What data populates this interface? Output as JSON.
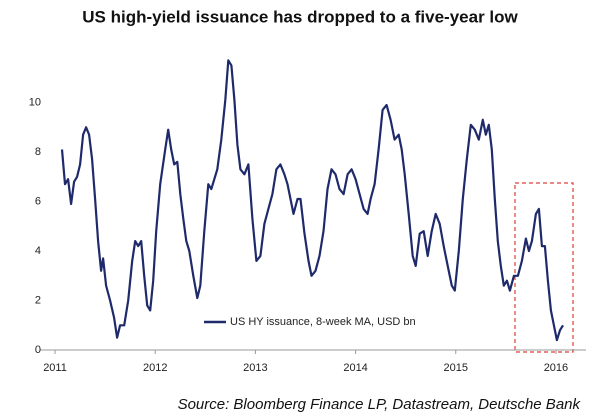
{
  "chart_data": {
    "type": "line",
    "title": "US high-yield issuance has dropped to a five-year low",
    "source": "Source: Bloomberg Finance LP, Datastream, Deutsche Bank",
    "xlim": [
      2010.85,
      2016.3
    ],
    "xticks": [
      2011,
      2012,
      2013,
      2014,
      2015,
      2016
    ],
    "ylim": [
      0,
      12
    ],
    "yticks": [
      0,
      2,
      4,
      6,
      8,
      10
    ],
    "legend": "bottom",
    "series": [
      {
        "name": "US HY issuance, 8-week MA, USD bn",
        "color": "#1f2a6b",
        "x": [
          2011.07,
          2011.1,
          2011.13,
          2011.16,
          2011.19,
          2011.22,
          2011.25,
          2011.28,
          2011.31,
          2011.34,
          2011.37,
          2011.4,
          2011.43,
          2011.46,
          2011.48,
          2011.51,
          2011.55,
          2011.59,
          2011.62,
          2011.65,
          2011.69,
          2011.73,
          2011.77,
          2011.8,
          2011.83,
          2011.86,
          2011.89,
          2011.92,
          2011.95,
          2011.98,
          2012.01,
          2012.05,
          2012.1,
          2012.13,
          2012.16,
          2012.19,
          2012.22,
          2012.25,
          2012.28,
          2012.31,
          2012.34,
          2012.38,
          2012.42,
          2012.45,
          2012.49,
          2012.53,
          2012.56,
          2012.59,
          2012.62,
          2012.66,
          2012.7,
          2012.73,
          2012.76,
          2012.79,
          2012.82,
          2012.85,
          2012.89,
          2012.93,
          2012.97,
          2013.01,
          2013.05,
          2013.09,
          2013.13,
          2013.17,
          2013.21,
          2013.25,
          2013.29,
          2013.32,
          2013.35,
          2013.38,
          2013.42,
          2013.45,
          2013.49,
          2013.53,
          2013.56,
          2013.6,
          2013.64,
          2013.68,
          2013.72,
          2013.76,
          2013.8,
          2013.84,
          2013.88,
          2013.92,
          2013.96,
          2014.0,
          2014.04,
          2014.08,
          2014.12,
          2014.15,
          2014.19,
          2014.23,
          2014.27,
          2014.31,
          2014.35,
          2014.39,
          2014.43,
          2014.46,
          2014.49,
          2014.53,
          2014.57,
          2014.6,
          2014.64,
          2014.68,
          2014.72,
          2014.76,
          2014.8,
          2014.84,
          2014.88,
          2014.92,
          2014.96,
          2014.99,
          2015.03,
          2015.07,
          2015.11,
          2015.15,
          2015.19,
          2015.23,
          2015.27,
          2015.3,
          2015.33,
          2015.36,
          2015.39,
          2015.42,
          2015.45,
          2015.48,
          2015.51,
          2015.54,
          2015.58,
          2015.62,
          2015.66,
          2015.7,
          2015.73,
          2015.76,
          2015.8,
          2015.83,
          2015.86,
          2015.89,
          2015.92,
          2015.95,
          2015.98,
          2016.01,
          2016.04,
          2016.07
        ],
        "values": [
          8.1,
          6.7,
          6.9,
          5.9,
          6.8,
          7.0,
          7.5,
          8.7,
          9.0,
          8.7,
          7.7,
          6.1,
          4.4,
          3.2,
          3.7,
          2.6,
          2.0,
          1.3,
          0.5,
          1.0,
          1.0,
          2.0,
          3.6,
          4.4,
          4.2,
          4.4,
          3.0,
          1.8,
          1.6,
          2.8,
          4.8,
          6.7,
          8.1,
          8.9,
          8.1,
          7.5,
          7.6,
          6.3,
          5.3,
          4.4,
          4.0,
          3.0,
          2.1,
          2.6,
          4.8,
          6.7,
          6.5,
          6.9,
          7.3,
          8.5,
          10.1,
          11.7,
          11.5,
          10.1,
          8.3,
          7.3,
          7.1,
          7.5,
          5.3,
          3.6,
          3.8,
          5.1,
          5.7,
          6.3,
          7.3,
          7.5,
          7.1,
          6.7,
          6.1,
          5.5,
          6.1,
          6.1,
          4.7,
          3.6,
          3.0,
          3.2,
          3.8,
          4.8,
          6.5,
          7.3,
          7.1,
          6.5,
          6.3,
          7.1,
          7.3,
          6.9,
          6.3,
          5.7,
          5.5,
          6.1,
          6.7,
          8.1,
          9.7,
          9.9,
          9.3,
          8.5,
          8.7,
          8.1,
          7.1,
          5.5,
          3.8,
          3.4,
          4.7,
          4.8,
          3.8,
          4.8,
          5.5,
          5.1,
          4.2,
          3.4,
          2.6,
          2.4,
          4.0,
          6.1,
          7.7,
          9.1,
          8.9,
          8.5,
          9.3,
          8.7,
          9.1,
          8.1,
          6.1,
          4.4,
          3.4,
          2.6,
          2.8,
          2.4,
          3.0,
          3.0,
          3.6,
          4.5,
          4.0,
          4.4,
          5.5,
          5.7,
          4.2,
          4.2,
          2.8,
          1.6,
          1.0,
          0.4,
          0.8,
          1.0
        ]
      }
    ]
  }
}
